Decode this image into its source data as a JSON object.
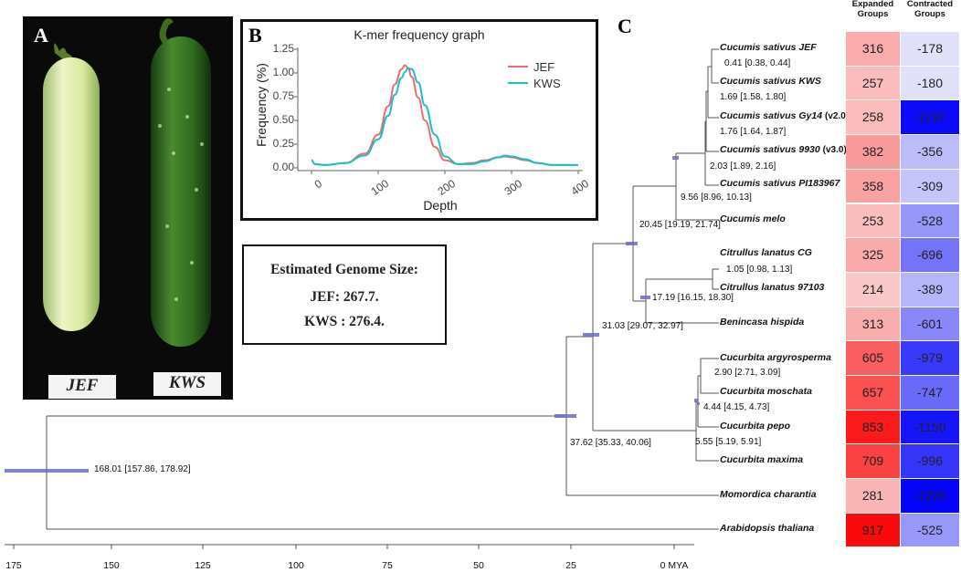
{
  "panels": {
    "a": "A",
    "b": "B",
    "c": "C"
  },
  "photo": {
    "label_left": "JEF",
    "label_right": "KWS"
  },
  "kmer_chart": {
    "title": "K-mer frequency graph",
    "xlabel": "Depth",
    "ylabel": "Frequency (%)",
    "yticks": [
      "0.00",
      "0.25",
      "0.50",
      "0.75",
      "1.00",
      "1.25"
    ],
    "xticks": [
      "0",
      "100",
      "200",
      "300",
      "400"
    ],
    "legend": [
      "JEF",
      "KWS"
    ],
    "colors": {
      "JEF": "#f26b6b",
      "KWS": "#18c0c8"
    }
  },
  "chart_data": {
    "type": "line",
    "title": "K-mer frequency graph",
    "xlabel": "Depth",
    "ylabel": "Frequency (%)",
    "xlim": [
      0,
      400
    ],
    "ylim": [
      0,
      1.25
    ],
    "series": [
      {
        "name": "JEF",
        "x": [
          0,
          5,
          20,
          50,
          80,
          100,
          115,
          125,
          135,
          140,
          145,
          150,
          160,
          170,
          185,
          200,
          220,
          240,
          260,
          280,
          290,
          300,
          320,
          340,
          360,
          380,
          400
        ],
        "y": [
          0.08,
          0.04,
          0.03,
          0.05,
          0.15,
          0.35,
          0.65,
          0.88,
          1.04,
          1.08,
          1.05,
          0.96,
          0.74,
          0.5,
          0.22,
          0.08,
          0.04,
          0.05,
          0.08,
          0.11,
          0.12,
          0.11,
          0.08,
          0.05,
          0.03,
          0.03,
          0.03
        ]
      },
      {
        "name": "KWS",
        "x": [
          0,
          5,
          20,
          50,
          80,
          100,
          115,
          125,
          135,
          140,
          145,
          150,
          160,
          170,
          185,
          200,
          220,
          240,
          260,
          280,
          290,
          300,
          320,
          340,
          360,
          380,
          400
        ],
        "y": [
          0.08,
          0.04,
          0.03,
          0.05,
          0.13,
          0.3,
          0.55,
          0.77,
          0.95,
          1.01,
          1.05,
          1.04,
          0.9,
          0.66,
          0.35,
          0.12,
          0.04,
          0.04,
          0.07,
          0.11,
          0.13,
          0.12,
          0.09,
          0.05,
          0.03,
          0.03,
          0.03
        ]
      }
    ]
  },
  "genome_size": {
    "title": "Estimated Genome Size:",
    "jef": "JEF: 267.7.",
    "kws": "KWS : 276.4."
  },
  "tree": {
    "taxa": [
      {
        "name": "Cucumis sativus JEF",
        "version": ""
      },
      {
        "name": "Cucumis sativus KWS",
        "version": ""
      },
      {
        "name": "Cucumis sativus Gy14",
        "version": "(v2.0)"
      },
      {
        "name": "Cucumis sativus 9930",
        "version": "(v3.0)"
      },
      {
        "name": "Cucumis sativus PI183967",
        "version": ""
      },
      {
        "name": "Cucumis melo",
        "version": ""
      },
      {
        "name": "Citrullus lanatus CG",
        "version": ""
      },
      {
        "name": "Citrullus lanatus 97103",
        "version": ""
      },
      {
        "name": "Benincasa hispida",
        "version": ""
      },
      {
        "name": "Cucurbita argyrosperma",
        "version": ""
      },
      {
        "name": "Cucurbita moschata",
        "version": ""
      },
      {
        "name": "Cucurbita pepo",
        "version": ""
      },
      {
        "name": "Cucurbita maxima",
        "version": ""
      },
      {
        "name": "Momordica charantia",
        "version": ""
      },
      {
        "name": "Arabidopsis thaliana",
        "version": ""
      }
    ],
    "node_labels": [
      "0.41 [0.38, 0.44]",
      "1.69 [1.58, 1.80]",
      "1.76 [1.64, 1.87]",
      "2.03 [1.89, 2.16]",
      "9.56 [8.96, 10.13]",
      "20.45 [19.19, 21.74]",
      "1.05 [0.98, 1.13]",
      "17.19 [16.15, 18.30]",
      "31.03 [29.07, 32.97]",
      "2.90 [2.71, 3.09]",
      "4.44 [4.15, 4.73]",
      "5.55 [5.19, 5.91]",
      "37.62 [35.33, 40.06]",
      "168.01 [157.86, 178.92]"
    ],
    "axis_ticks": [
      "175",
      "150",
      "125",
      "100",
      "75",
      "50",
      "25",
      "0 MYA"
    ]
  },
  "heatmap": {
    "expanded_header": "Expanded Groups",
    "contracted_header": "Contracted Groups",
    "expanded": [
      316,
      257,
      258,
      382,
      358,
      253,
      325,
      214,
      313,
      605,
      657,
      853,
      709,
      281,
      917
    ],
    "contracted": [
      -178,
      -180,
      -1197,
      -356,
      -309,
      -528,
      -696,
      -389,
      -601,
      -979,
      -747,
      -1150,
      -996,
      -1225,
      -525
    ]
  }
}
